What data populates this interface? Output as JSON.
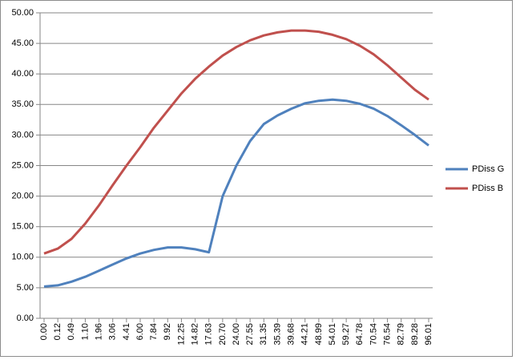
{
  "chart_data": {
    "type": "line",
    "categories": [
      "0.00",
      "0.12",
      "0.49",
      "1.10",
      "1.96",
      "3.06",
      "4.41",
      "6.00",
      "7.84",
      "9.92",
      "12.25",
      "14.82",
      "17.63",
      "20.70",
      "24.00",
      "27.55",
      "31.35",
      "35.39",
      "39.68",
      "44.21",
      "48.99",
      "54.01",
      "59.27",
      "64.78",
      "70.54",
      "76.54",
      "82.79",
      "89.28",
      "96.01"
    ],
    "series": [
      {
        "name": "PDiss G",
        "color": "#4f81bd",
        "values": [
          5.2,
          5.4,
          6.0,
          6.8,
          7.8,
          8.8,
          9.8,
          10.6,
          11.2,
          11.6,
          11.6,
          11.3,
          10.8,
          20.0,
          25.0,
          29.0,
          31.8,
          33.2,
          34.3,
          35.2,
          35.6,
          35.8,
          35.6,
          35.1,
          34.3,
          33.1,
          31.6,
          30.0,
          28.3
        ]
      },
      {
        "name": "PDiss B",
        "color": "#c0504d",
        "values": [
          10.6,
          11.4,
          13.0,
          15.5,
          18.5,
          21.8,
          25.0,
          28.0,
          31.2,
          34.0,
          36.8,
          39.2,
          41.2,
          43.0,
          44.4,
          45.5,
          46.3,
          46.8,
          47.1,
          47.1,
          46.9,
          46.4,
          45.7,
          44.6,
          43.2,
          41.4,
          39.4,
          37.4,
          35.8
        ]
      }
    ],
    "ylim": [
      0,
      50
    ],
    "yticks": [
      {
        "value": 0,
        "label": "0.00"
      },
      {
        "value": 5,
        "label": "5.00"
      },
      {
        "value": 10,
        "label": "10.00"
      },
      {
        "value": 15,
        "label": "15.00"
      },
      {
        "value": 20,
        "label": "20.00"
      },
      {
        "value": 25,
        "label": "25.00"
      },
      {
        "value": 30,
        "label": "30.00"
      },
      {
        "value": 35,
        "label": "35.00"
      },
      {
        "value": 40,
        "label": "40.00"
      },
      {
        "value": 45,
        "label": "45.00"
      },
      {
        "value": 50,
        "label": "50.00"
      }
    ],
    "grid": true,
    "legend": "right"
  }
}
